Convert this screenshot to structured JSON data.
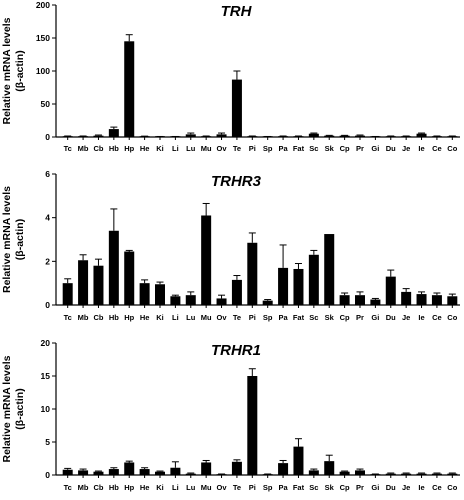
{
  "chart_data": [
    {
      "type": "bar",
      "title": "TRH",
      "ylabel_lines": [
        "Relative mRNA levels",
        "(β-actin)"
      ],
      "ylim": [
        0,
        200
      ],
      "yticks": [
        "0",
        "50",
        "100",
        "150",
        "200"
      ],
      "categories": [
        "Tc",
        "Mb",
        "Cb",
        "Hb",
        "Hp",
        "He",
        "Ki",
        "Li",
        "Lu",
        "Mu",
        "Ov",
        "Te",
        "Pi",
        "Sp",
        "Pa",
        "Fat",
        "Sc",
        "Sk",
        "Cp",
        "Pr",
        "Gi",
        "Du",
        "Je",
        "Ie",
        "Ce",
        "Co"
      ],
      "values": [
        1,
        1,
        2,
        12,
        145,
        1,
        0.5,
        0.5,
        4,
        1,
        4,
        87,
        1,
        0.5,
        1,
        1,
        5,
        2,
        2,
        2,
        0.5,
        1,
        1,
        5,
        1,
        1
      ],
      "errors": [
        0.5,
        0.5,
        1,
        3,
        10,
        0.3,
        0.3,
        0.3,
        2,
        0.5,
        2,
        13,
        0.5,
        0.3,
        0.5,
        0.5,
        1,
        0.5,
        0.5,
        1,
        0.3,
        0.5,
        0.5,
        1,
        0.5,
        0.5
      ]
    },
    {
      "type": "bar",
      "title": "TRHR3",
      "ylabel_lines": [
        "Relative mRNA levels",
        "(β-actin)"
      ],
      "ylim": [
        0,
        6
      ],
      "yticks": [
        "0",
        "2",
        "4",
        "6"
      ],
      "categories": [
        "Tc",
        "Mb",
        "Cb",
        "Hb",
        "Hp",
        "He",
        "Ki",
        "Li",
        "Lu",
        "Mu",
        "Ov",
        "Te",
        "Pi",
        "Sp",
        "Pa",
        "Fat",
        "Sc",
        "Sk",
        "Cp",
        "Pr",
        "Gi",
        "Du",
        "Je",
        "Ie",
        "Ce",
        "Co"
      ],
      "values": [
        1.0,
        2.05,
        1.8,
        3.4,
        2.45,
        1.0,
        0.95,
        0.4,
        0.45,
        4.1,
        0.3,
        1.15,
        2.85,
        0.2,
        1.7,
        1.65,
        2.3,
        3.25,
        0.45,
        0.45,
        0.25,
        1.3,
        0.6,
        0.5,
        0.45,
        0.4
      ],
      "errors": [
        0.2,
        0.25,
        0.3,
        1.0,
        0.05,
        0.15,
        0.1,
        0.05,
        0.15,
        0.55,
        0.15,
        0.2,
        0.45,
        0.05,
        1.05,
        0.25,
        0.2,
        0,
        0.1,
        0.15,
        0.05,
        0.3,
        0.15,
        0.1,
        0.1,
        0.1
      ]
    },
    {
      "type": "bar",
      "title": "TRHR1",
      "ylabel_lines": [
        "Relative mRNA levels",
        "(β-actin)"
      ],
      "ylim": [
        0,
        20
      ],
      "yticks": [
        "0",
        "5",
        "10",
        "15",
        "20"
      ],
      "categories": [
        "Tc",
        "Mb",
        "Cb",
        "Hb",
        "Hp",
        "He",
        "Ki",
        "Li",
        "Lu",
        "Mu",
        "Ov",
        "Te",
        "Pi",
        "Sp",
        "Pa",
        "Fat",
        "Sc",
        "Sk",
        "Cp",
        "Pr",
        "Gi",
        "Du",
        "Je",
        "Ie",
        "Ce",
        "Co"
      ],
      "values": [
        0.8,
        0.7,
        0.5,
        0.9,
        1.9,
        0.9,
        0.5,
        1.1,
        0.2,
        1.9,
        0.1,
        2.0,
        15.0,
        0.1,
        1.8,
        4.3,
        0.7,
        2.1,
        0.5,
        0.7,
        0.1,
        0.2,
        0.2,
        0.2,
        0.2,
        0.2
      ],
      "errors": [
        0.2,
        0.2,
        0.1,
        0.2,
        0.2,
        0.2,
        0.1,
        0.9,
        0.1,
        0.3,
        0.05,
        0.3,
        1.1,
        0.05,
        0.4,
        1.2,
        0.2,
        0.9,
        0.1,
        0.2,
        0.05,
        0.1,
        0.1,
        0.1,
        0.1,
        0.1
      ]
    }
  ]
}
